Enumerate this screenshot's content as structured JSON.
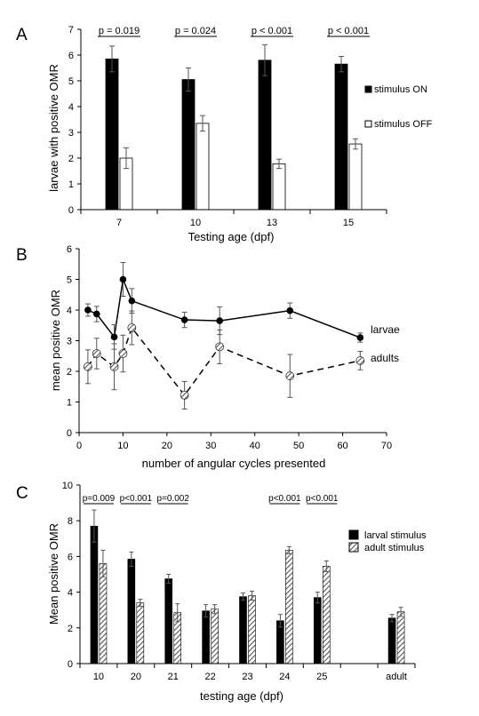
{
  "chart_data": [
    {
      "panel_label": "A",
      "type": "bar",
      "xlabel": "Testing age (dpf)",
      "ylabel": "larvae with positive OMR",
      "ylim": [
        0,
        7
      ],
      "yticks": [
        0,
        1,
        2,
        3,
        4,
        5,
        6,
        7
      ],
      "categories": [
        "7",
        "10",
        "13",
        "15"
      ],
      "legend_position": "right",
      "series": [
        {
          "name": "stimulus ON",
          "color": "#000000",
          "values": [
            5.85,
            5.05,
            5.8,
            5.65
          ],
          "errors": [
            0.5,
            0.45,
            0.6,
            0.3
          ]
        },
        {
          "name": "stimulus OFF",
          "color": "#ffffff",
          "values": [
            2.0,
            3.35,
            1.78,
            2.55
          ],
          "errors": [
            0.4,
            0.3,
            0.18,
            0.2
          ]
        }
      ],
      "annotations": [
        {
          "text": "p = 0.019",
          "category": 0
        },
        {
          "text": "p = 0.024",
          "category": 1
        },
        {
          "text": "p < 0.001",
          "category": 2
        },
        {
          "text": "p < 0.001",
          "category": 3
        }
      ]
    },
    {
      "panel_label": "B",
      "type": "line",
      "xlabel": "number of angular cycles presented",
      "ylabel": "mean positive OMR",
      "xlim": [
        0,
        70
      ],
      "ylim": [
        0,
        6
      ],
      "xticks": [
        0,
        10,
        20,
        30,
        40,
        50,
        60,
        70
      ],
      "yticks": [
        0,
        1,
        2,
        3,
        4,
        5,
        6
      ],
      "series": [
        {
          "name": "larvae",
          "style": "solid",
          "x": [
            2,
            4,
            8,
            10,
            12,
            24,
            32,
            48,
            64
          ],
          "y": [
            4.0,
            3.87,
            3.12,
            5.0,
            4.3,
            3.68,
            3.65,
            3.98,
            3.1
          ],
          "errors": [
            0.2,
            0.25,
            0.4,
            0.55,
            0.4,
            0.25,
            0.45,
            0.25,
            0.15
          ]
        },
        {
          "name": "adults",
          "style": "dashed",
          "x": [
            2,
            4,
            8,
            10,
            12,
            24,
            32,
            48,
            64
          ],
          "y": [
            2.15,
            2.58,
            2.15,
            2.58,
            3.42,
            1.22,
            2.8,
            1.85,
            2.35
          ],
          "errors": [
            0.55,
            0.5,
            0.75,
            0.6,
            0.55,
            0.45,
            0.55,
            0.7,
            0.3
          ]
        }
      ]
    },
    {
      "panel_label": "C",
      "type": "bar",
      "xlabel": "testing age (dpf)",
      "ylabel": "Mean positive OMR",
      "ylim": [
        0,
        10
      ],
      "yticks": [
        0,
        2,
        4,
        6,
        8,
        10
      ],
      "categories": [
        "10",
        "20",
        "21",
        "22",
        "23",
        "24",
        "25",
        "",
        "adult"
      ],
      "legend_position": "top-right",
      "series": [
        {
          "name": "larval stimulus",
          "color": "#000000",
          "values": [
            7.7,
            5.85,
            4.75,
            2.95,
            3.75,
            2.4,
            3.7,
            null,
            2.55
          ],
          "errors": [
            0.9,
            0.4,
            0.25,
            0.35,
            0.2,
            0.35,
            0.3,
            null,
            0.2
          ]
        },
        {
          "name": "adult stimulus",
          "color": "#cccccc",
          "values": [
            5.6,
            3.4,
            2.85,
            3.05,
            3.8,
            6.35,
            5.45,
            null,
            2.9
          ],
          "errors": [
            0.75,
            0.2,
            0.5,
            0.25,
            0.25,
            0.2,
            0.3,
            null,
            0.25
          ]
        }
      ],
      "annotations": [
        {
          "text": "p=0.009",
          "category": 0
        },
        {
          "text": "p<0.001",
          "category": 1
        },
        {
          "text": "p=0.002",
          "category": 2
        },
        {
          "text": "p<0.001",
          "category": 5
        },
        {
          "text": "p<0.001",
          "category": 6
        }
      ]
    }
  ]
}
